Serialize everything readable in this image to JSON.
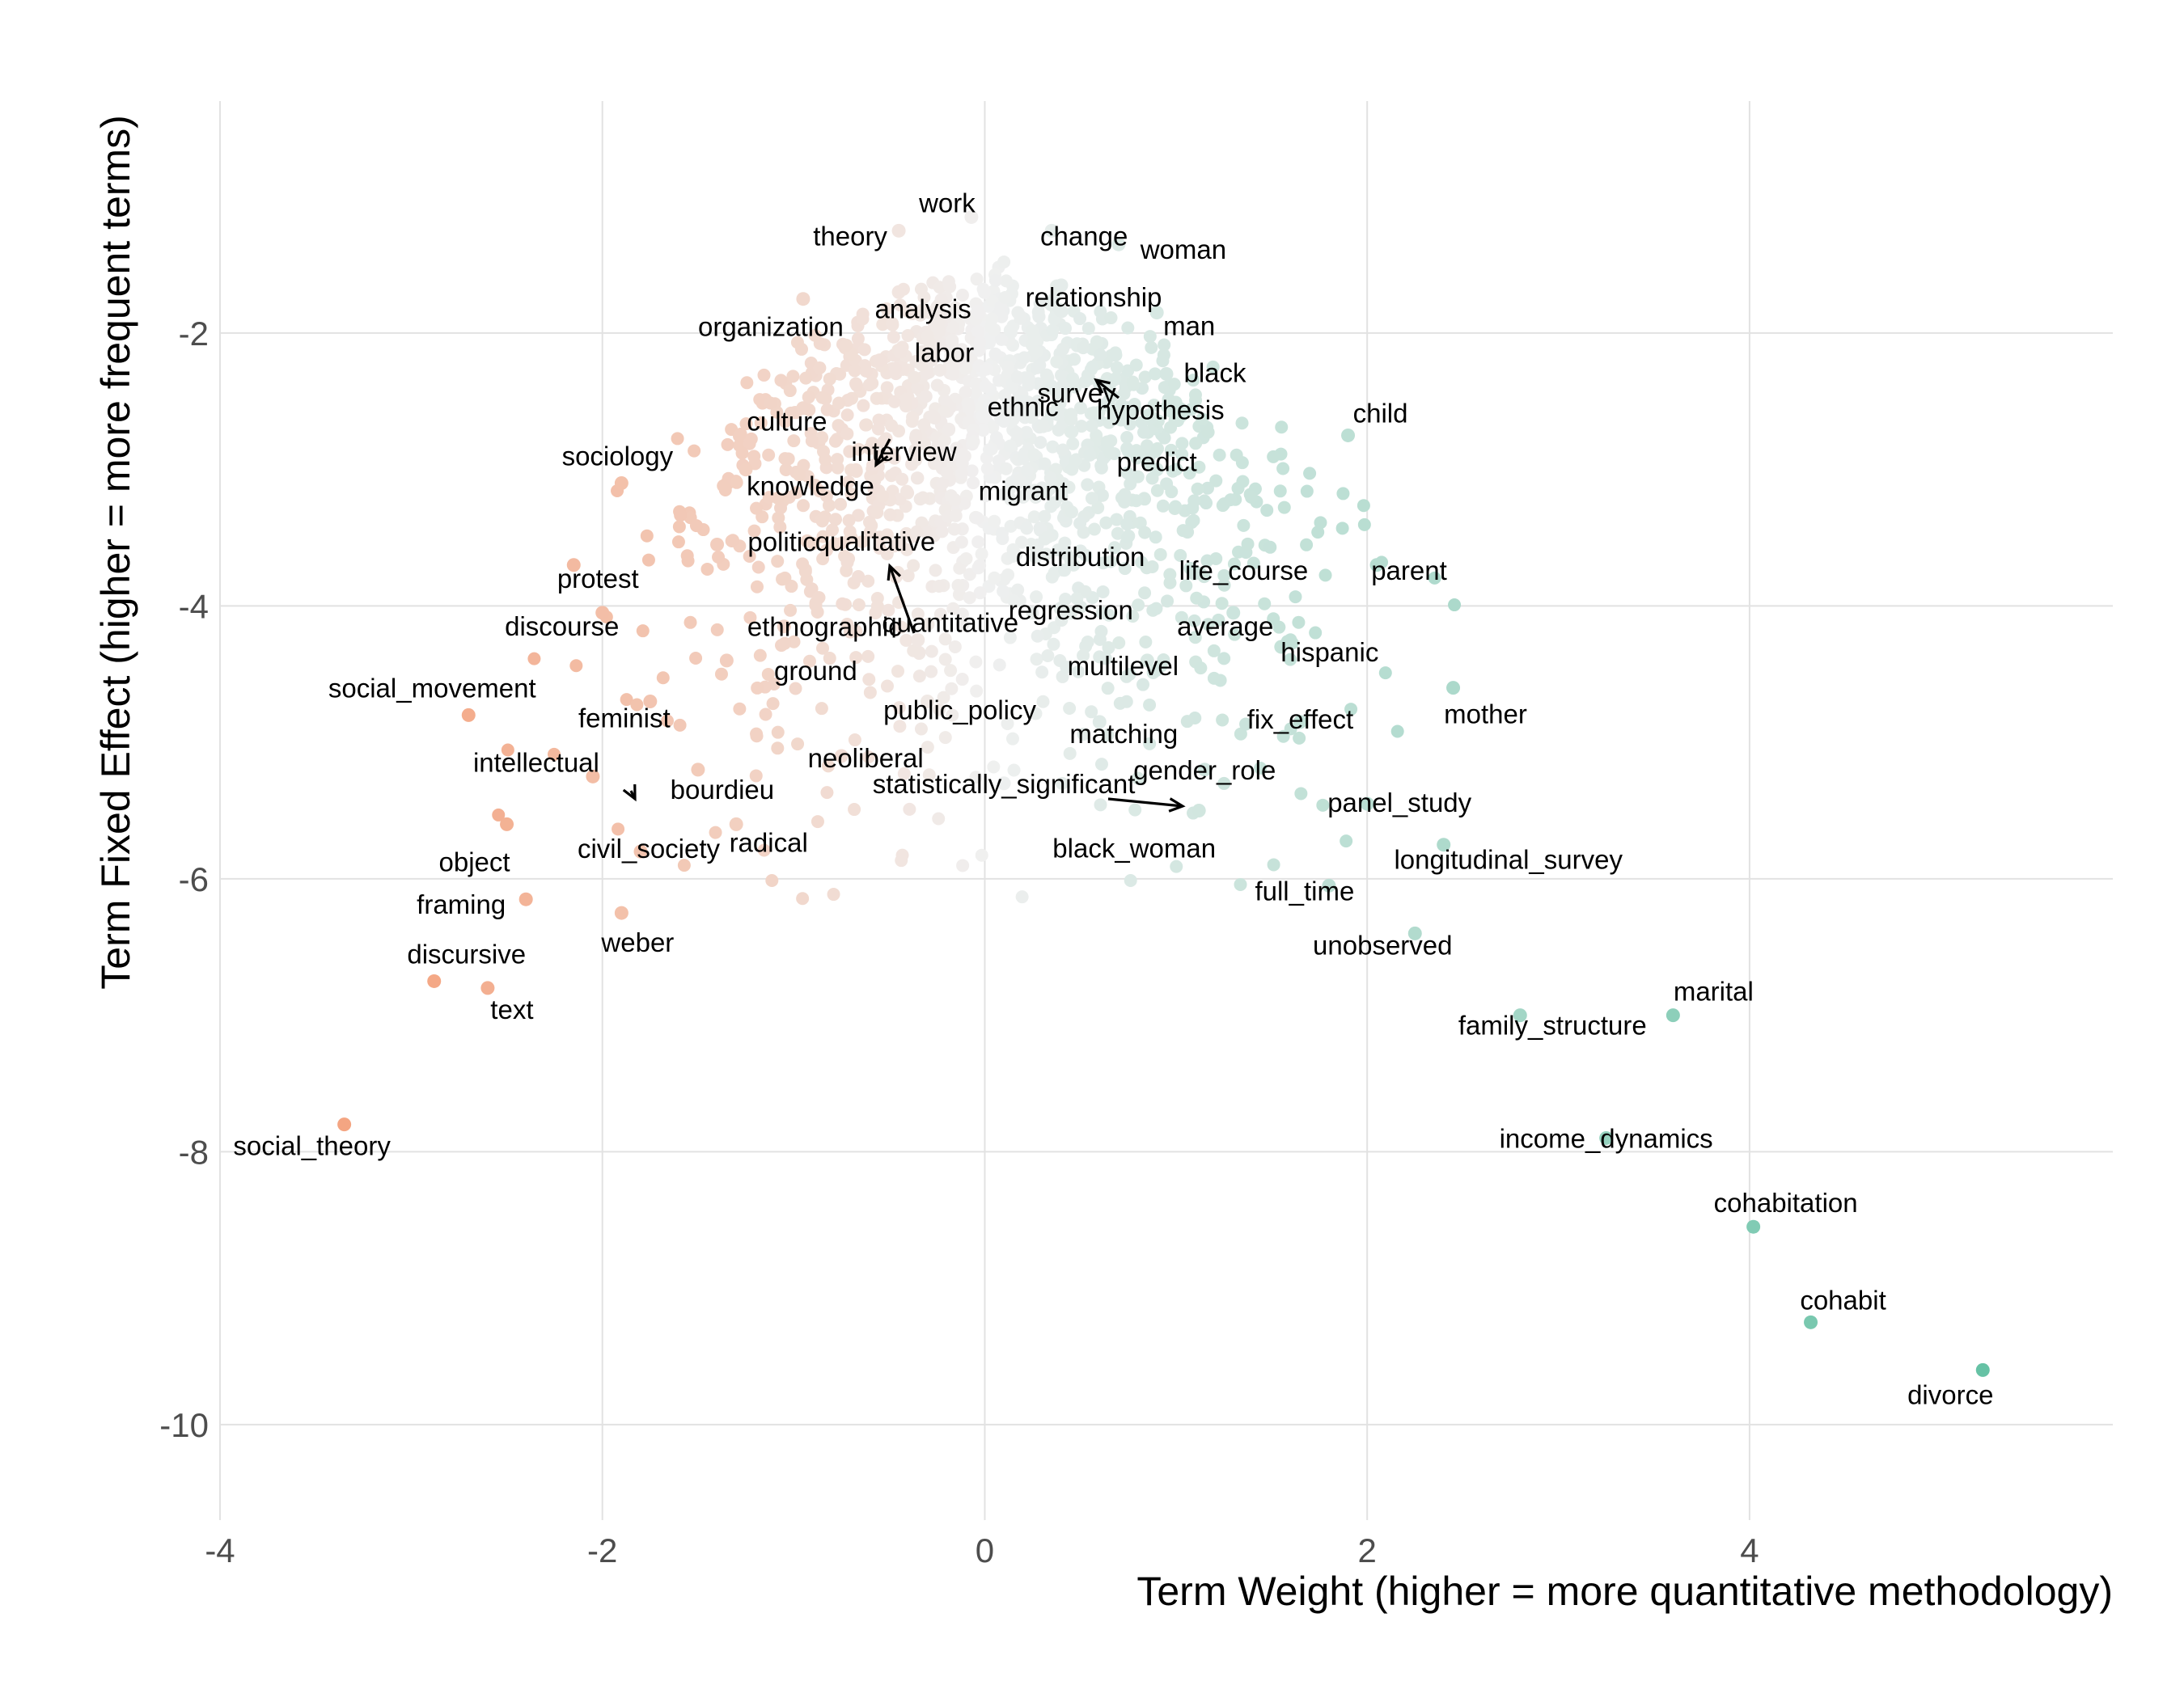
{
  "chart_data": {
    "type": "scatter",
    "title": "",
    "xlabel": "Term Weight (higher = more quantitative methodology)",
    "ylabel": "Term Fixed Effect (higher = more frequent terms)",
    "xlim": [
      -4,
      5.9
    ],
    "ylim": [
      -10.7,
      -0.3
    ],
    "x_ticks": [
      -4,
      -2,
      0,
      2,
      4
    ],
    "y_ticks": [
      -10,
      -8,
      -6,
      -4,
      -2
    ],
    "x_tick_labels": [
      "-4",
      "-2",
      "0",
      "2",
      "4"
    ],
    "y_tick_labels": [
      "-10",
      "-8",
      "-6",
      "-4",
      "-2"
    ],
    "grid": true,
    "legend": "none",
    "colors": {
      "negative": "#f4a582",
      "neutral": "#f0f0f0",
      "positive": "#66c2a5"
    },
    "points": [
      {
        "term": "social_theory",
        "x": -3.35,
        "y": -7.8
      },
      {
        "term": "text",
        "x": -2.6,
        "y": -6.8
      },
      {
        "term": "discursive",
        "x": -2.88,
        "y": -6.75
      },
      {
        "term": "framing",
        "x": -2.4,
        "y": -6.15
      },
      {
        "term": "weber",
        "x": -1.9,
        "y": -6.25
      },
      {
        "term": "object",
        "x": -2.5,
        "y": -5.6
      },
      {
        "term": "intellectual",
        "x": -2.05,
        "y": -5.25
      },
      {
        "term": "social_movement",
        "x": -2.7,
        "y": -4.8
      },
      {
        "term": "civil_society",
        "x": -1.8,
        "y": -5.8
      },
      {
        "term": "discourse",
        "x": -2.0,
        "y": -4.05
      },
      {
        "term": "protest",
        "x": -2.15,
        "y": -3.7
      },
      {
        "term": "sociology",
        "x": -1.9,
        "y": -3.1
      },
      {
        "term": "feminist",
        "x": -1.75,
        "y": -4.7
      },
      {
        "term": "bourdieu",
        "x": -1.5,
        "y": -5.2
      },
      {
        "term": "radical",
        "x": -1.3,
        "y": -5.6
      },
      {
        "term": "ground",
        "x": -1.35,
        "y": -4.4
      },
      {
        "term": "politic",
        "x": -1.4,
        "y": -3.55
      },
      {
        "term": "ethnographic",
        "x": -1.05,
        "y": -4.15
      },
      {
        "term": "knowledge",
        "x": -1.25,
        "y": -3.0
      },
      {
        "term": "culture",
        "x": -0.95,
        "y": -2.55
      },
      {
        "term": "organization",
        "x": -0.95,
        "y": -1.75
      },
      {
        "term": "interview",
        "x": -0.55,
        "y": -2.9
      },
      {
        "term": "qualitative",
        "x": -0.7,
        "y": -3.5
      },
      {
        "term": "labor",
        "x": -0.55,
        "y": -2.2
      },
      {
        "term": "neoliberal",
        "x": -0.75,
        "y": -5.1
      },
      {
        "term": "public_policy",
        "x": -0.3,
        "y": -4.7
      },
      {
        "term": "quantitative",
        "x": -0.35,
        "y": -4.25
      },
      {
        "term": "analysis",
        "x": -0.45,
        "y": -1.7
      },
      {
        "term": "theory",
        "x": -0.45,
        "y": -1.25
      },
      {
        "term": "work",
        "x": -0.07,
        "y": -1.15
      },
      {
        "term": "migrant",
        "x": 0.2,
        "y": -3.2
      },
      {
        "term": "ethnic",
        "x": 0.2,
        "y": -2.5
      },
      {
        "term": "change",
        "x": 0.35,
        "y": -1.25
      },
      {
        "term": "relationship",
        "x": 0.4,
        "y": -1.65
      },
      {
        "term": "distribution",
        "x": 0.5,
        "y": -3.6
      },
      {
        "term": "regression",
        "x": 0.45,
        "y": -4.05
      },
      {
        "term": "statistically_significant",
        "x": 0.1,
        "y": -5.3
      },
      {
        "term": "matching",
        "x": 0.6,
        "y": -4.85
      },
      {
        "term": "survey",
        "x": 0.65,
        "y": -2.4
      },
      {
        "term": "hypothesis",
        "x": 0.75,
        "y": -2.55
      },
      {
        "term": "predict",
        "x": 0.9,
        "y": -3.0
      },
      {
        "term": "woman",
        "x": 0.7,
        "y": -1.35
      },
      {
        "term": "man",
        "x": 0.9,
        "y": -1.85
      },
      {
        "term": "black",
        "x": 0.95,
        "y": -2.3
      },
      {
        "term": "multilevel",
        "x": 0.85,
        "y": -4.4
      },
      {
        "term": "life_course",
        "x": 1.1,
        "y": -3.75
      },
      {
        "term": "average",
        "x": 1.3,
        "y": -4.05
      },
      {
        "term": "gender_role",
        "x": 1.15,
        "y": -5.2
      },
      {
        "term": "black_woman",
        "x": 1.12,
        "y": -5.5
      },
      {
        "term": "hispanic",
        "x": 1.55,
        "y": -4.3
      },
      {
        "term": "fix_effect",
        "x": 1.65,
        "y": -4.85
      },
      {
        "term": "child",
        "x": 1.9,
        "y": -2.75
      },
      {
        "term": "parent",
        "x": 2.05,
        "y": -3.7
      },
      {
        "term": "full_time",
        "x": 1.8,
        "y": -6.05
      },
      {
        "term": "panel_study",
        "x": 2.0,
        "y": -5.45
      },
      {
        "term": "unobserved",
        "x": 2.25,
        "y": -6.4
      },
      {
        "term": "mother",
        "x": 2.45,
        "y": -4.6
      },
      {
        "term": "longitudinal_survey",
        "x": 2.4,
        "y": -5.75
      },
      {
        "term": "family_structure",
        "x": 2.8,
        "y": -7.0
      },
      {
        "term": "income_dynamics",
        "x": 3.25,
        "y": -7.9
      },
      {
        "term": "marital",
        "x": 3.6,
        "y": -7.0
      },
      {
        "term": "cohabitation",
        "x": 4.02,
        "y": -8.55
      },
      {
        "term": "cohabit",
        "x": 4.32,
        "y": -9.25
      },
      {
        "term": "divorce",
        "x": 5.22,
        "y": -9.6
      }
    ]
  }
}
